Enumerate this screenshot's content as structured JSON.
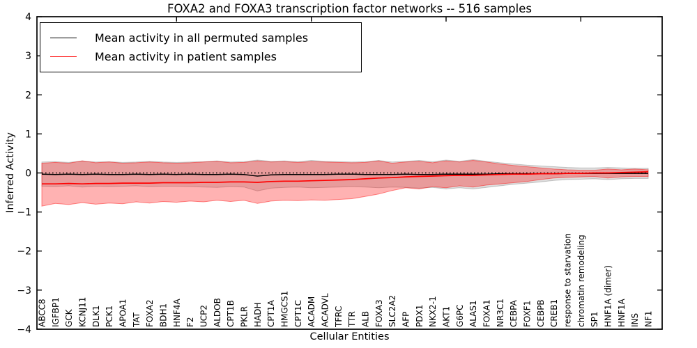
{
  "figure": {
    "title": "FOXA2 and FOXA3 transcription factor networks -- 516 samples",
    "xlabel": "Cellular Entities",
    "ylabel": "Inferred Activity"
  },
  "legend": {
    "items": [
      {
        "label": "Mean activity in all permuted samples",
        "color": "#000000"
      },
      {
        "label": "Mean activity in patient samples",
        "color": "#ff0000"
      }
    ]
  },
  "chart_data": {
    "type": "line",
    "title": "FOXA2 and FOXA3 transcription factor networks -- 516 samples",
    "xlabel": "Cellular Entities",
    "ylabel": "Inferred Activity",
    "ylim": [
      -4,
      4
    ],
    "yticks": [
      4,
      3,
      2,
      1,
      0,
      -1,
      -2,
      -3,
      -4
    ],
    "x_major_tick_indices": [
      10,
      20,
      30,
      40
    ],
    "grid": false,
    "legend_position": "upper left",
    "zero_line": {
      "y": 0,
      "style": "dotted",
      "color": "#000000"
    },
    "colors": {
      "permuted_line": "#000000",
      "patient_line": "#ff0000",
      "permuted_band_fill": "rgba(0,0,0,0.13)",
      "permuted_band_edge": "rgba(0,0,0,0.20)",
      "patient_band_fill": "rgba(255,0,0,0.30)",
      "patient_band_edge": "rgba(255,0,0,0.45)"
    },
    "categories": [
      "ABCC8",
      "IGFBP1",
      "GCK",
      "KCNJ11",
      "DLK1",
      "PCK1",
      "APOA1",
      "TAT",
      "FOXA2",
      "BDH1",
      "HNF4A",
      "F2",
      "UCP2",
      "ALDOB",
      "CPT1B",
      "PKLR",
      "HADH",
      "CPT1A",
      "HMGCS1",
      "CPT1C",
      "ACADM",
      "ACADVL",
      "TFRC",
      "TTR",
      "ALB",
      "FOXA3",
      "SLC2A2",
      "AFP",
      "PDX1",
      "NKX2-1",
      "AKT1",
      "G6PC",
      "ALAS1",
      "FOXA1",
      "NR3C1",
      "CEBPA",
      "FOXF1",
      "CEBPB",
      "CREB1",
      "response to starvation",
      "chromatin remodeling",
      "SP1",
      "HNF1A (dimer)",
      "HNF1A",
      "INS",
      "NF1"
    ],
    "series": [
      {
        "name": "Mean activity in all permuted samples",
        "role": "permuted_mean",
        "values": [
          -0.03,
          -0.04,
          -0.03,
          -0.04,
          -0.03,
          -0.04,
          -0.04,
          -0.03,
          -0.04,
          -0.03,
          -0.04,
          -0.03,
          -0.04,
          -0.04,
          -0.03,
          -0.04,
          -0.08,
          -0.05,
          -0.04,
          -0.04,
          -0.04,
          -0.04,
          -0.03,
          -0.03,
          -0.04,
          -0.04,
          -0.04,
          -0.03,
          -0.04,
          -0.04,
          -0.03,
          -0.03,
          -0.03,
          -0.03,
          -0.02,
          -0.02,
          -0.02,
          -0.02,
          -0.02,
          -0.01,
          -0.01,
          -0.01,
          -0.01,
          -0.01,
          -0.01,
          -0.01
        ]
      },
      {
        "name": "Permuted samples band (mean ± std)",
        "role": "permuted_band",
        "upper": [
          0.28,
          0.29,
          0.27,
          0.31,
          0.28,
          0.29,
          0.27,
          0.28,
          0.3,
          0.28,
          0.27,
          0.28,
          0.29,
          0.31,
          0.28,
          0.29,
          0.33,
          0.3,
          0.31,
          0.29,
          0.32,
          0.3,
          0.29,
          0.28,
          0.29,
          0.32,
          0.28,
          0.3,
          0.32,
          0.29,
          0.33,
          0.3,
          0.34,
          0.3,
          0.26,
          0.23,
          0.2,
          0.18,
          0.16,
          0.14,
          0.13,
          0.13,
          0.14,
          0.13,
          0.12,
          0.12
        ],
        "lower": [
          -0.34,
          -0.35,
          -0.33,
          -0.36,
          -0.34,
          -0.35,
          -0.34,
          -0.33,
          -0.35,
          -0.34,
          -0.34,
          -0.35,
          -0.36,
          -0.37,
          -0.35,
          -0.36,
          -0.46,
          -0.39,
          -0.37,
          -0.36,
          -0.38,
          -0.37,
          -0.36,
          -0.35,
          -0.36,
          -0.38,
          -0.36,
          -0.37,
          -0.39,
          -0.37,
          -0.41,
          -0.38,
          -0.41,
          -0.37,
          -0.33,
          -0.29,
          -0.26,
          -0.23,
          -0.19,
          -0.17,
          -0.16,
          -0.15,
          -0.17,
          -0.15,
          -0.14,
          -0.14
        ]
      },
      {
        "name": "Mean activity in patient samples",
        "role": "patient_mean",
        "values": [
          -0.28,
          -0.28,
          -0.27,
          -0.28,
          -0.27,
          -0.27,
          -0.26,
          -0.26,
          -0.26,
          -0.25,
          -0.25,
          -0.25,
          -0.24,
          -0.24,
          -0.23,
          -0.23,
          -0.24,
          -0.22,
          -0.21,
          -0.21,
          -0.2,
          -0.19,
          -0.18,
          -0.17,
          -0.15,
          -0.13,
          -0.12,
          -0.1,
          -0.09,
          -0.08,
          -0.07,
          -0.06,
          -0.06,
          -0.05,
          -0.04,
          -0.03,
          -0.03,
          -0.02,
          -0.02,
          -0.01,
          -0.01,
          0.0,
          0.0,
          0.01,
          0.02,
          0.03
        ]
      },
      {
        "name": "Patient samples band (mean ± std)",
        "role": "patient_band",
        "upper": [
          0.25,
          0.27,
          0.25,
          0.31,
          0.26,
          0.28,
          0.25,
          0.26,
          0.28,
          0.26,
          0.25,
          0.26,
          0.28,
          0.3,
          0.26,
          0.27,
          0.31,
          0.28,
          0.29,
          0.27,
          0.29,
          0.28,
          0.27,
          0.26,
          0.27,
          0.31,
          0.25,
          0.28,
          0.3,
          0.26,
          0.31,
          0.28,
          0.32,
          0.28,
          0.23,
          0.19,
          0.16,
          0.13,
          0.1,
          0.08,
          0.07,
          0.07,
          0.1,
          0.08,
          0.1,
          0.08
        ],
        "lower": [
          -0.85,
          -0.78,
          -0.81,
          -0.76,
          -0.8,
          -0.77,
          -0.79,
          -0.74,
          -0.77,
          -0.73,
          -0.75,
          -0.72,
          -0.74,
          -0.7,
          -0.73,
          -0.7,
          -0.78,
          -0.72,
          -0.7,
          -0.71,
          -0.69,
          -0.7,
          -0.68,
          -0.66,
          -0.6,
          -0.54,
          -0.45,
          -0.38,
          -0.41,
          -0.35,
          -0.38,
          -0.33,
          -0.36,
          -0.31,
          -0.28,
          -0.25,
          -0.22,
          -0.17,
          -0.13,
          -0.11,
          -0.1,
          -0.09,
          -0.13,
          -0.1,
          -0.09,
          -0.09
        ]
      }
    ]
  }
}
